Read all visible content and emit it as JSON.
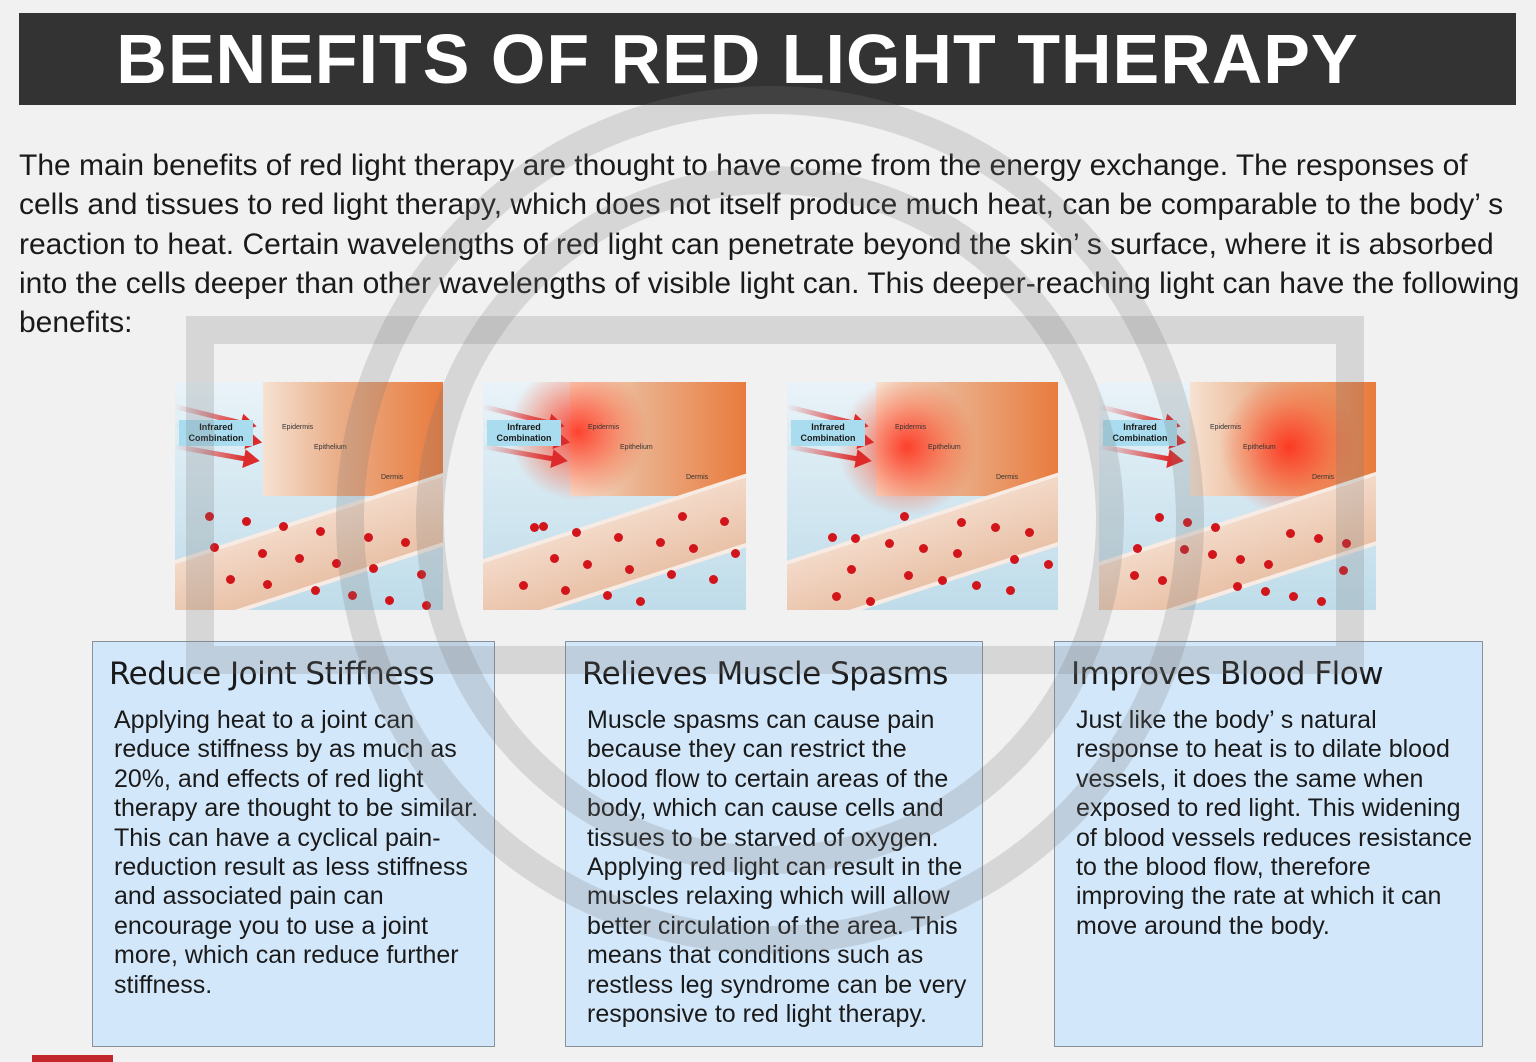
{
  "title": "BENEFITS OF RED LIGHT THERAPY",
  "intro": "The main benefits of red light therapy are thought to have come from the energy exchange. The responses of cells and tissues to red light therapy, which does not itself produce much heat, can be comparable to the body’ s reaction to heat. Certain wavelengths of red light can penetrate beyond the skin’ s surface, where it is absorbed into the cells deeper than other wavelengths of visible light can. This deeper-reaching light can have the following benefits:",
  "illustrations": [
    {
      "tag": "Infrared Combination",
      "layers": [
        "Epidermis",
        "Epithelium",
        "Dermis"
      ]
    },
    {
      "tag": "Infrared Combination",
      "layers": [
        "Epidermis",
        "Epithelium",
        "Dermis"
      ]
    },
    {
      "tag": "Infrared Combination",
      "layers": [
        "Epidermis",
        "Epithelium",
        "Dermis"
      ]
    },
    {
      "tag": "Infrared Combination",
      "layers": [
        "Epidermis",
        "Epithelium",
        "Dermis"
      ]
    }
  ],
  "cards": [
    {
      "heading": "Reduce Joint Stiffness",
      "body": "Applying heat to a joint can reduce stiffness by as much as 20%, and effects of red light therapy are thought to be similar. This can have a cyclical pain-reduction result as less stiffness and associated pain can encourage you to use a joint more, which can reduce further stiffness."
    },
    {
      "heading": "Relieves Muscle Spasms",
      "body": "Muscle spasms can cause pain because they can restrict the blood flow to certain areas of the body, which can cause cells and tissues to be starved of oxygen. Applying red light can result in the muscles relaxing which will allow better circulation of the area. This means that conditions such as restless leg syndrome can be very responsive to red light therapy."
    },
    {
      "heading": "Improves Blood Flow",
      "body": "Just like the body’ s natural response to heat is to dilate blood vessels, it does the same when exposed to red light. This widening of blood vessels reduces resistance to the blood flow, therefore improving the rate at which it can move around the body."
    }
  ],
  "colors": {
    "title_bar": "#333333",
    "card_bg": "#d3e7fa",
    "accent_red": "#c1272d"
  }
}
